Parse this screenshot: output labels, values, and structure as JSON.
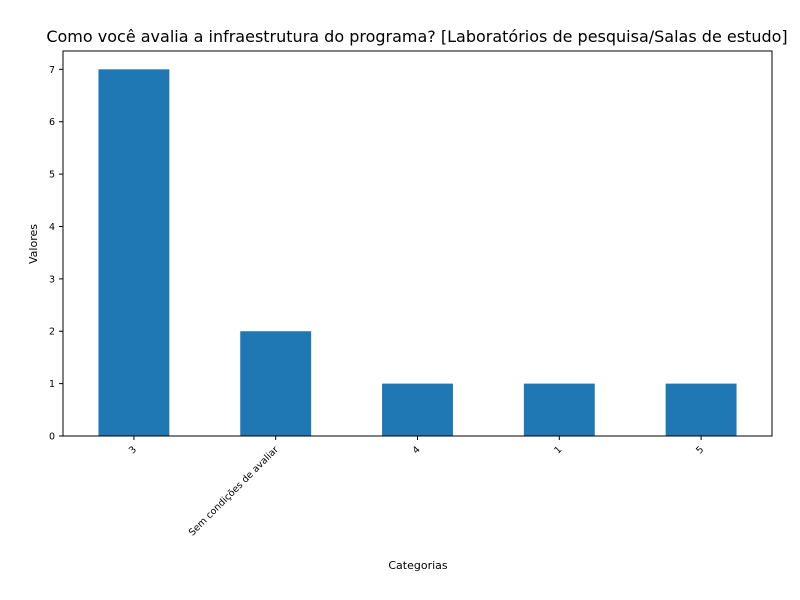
{
  "chart_data": {
    "type": "bar",
    "title": "Como você avalia a infraestrutura do programa? [Laboratórios de pesquisa/Salas de estudo]",
    "xlabel": "Categorias",
    "ylabel": "Valores",
    "categories": [
      "3",
      "Sem condições de avaliar",
      "4",
      "1",
      "5"
    ],
    "values": [
      7,
      2,
      1,
      1,
      1
    ],
    "ylim": [
      0,
      7.35
    ],
    "yticks": [
      0,
      1,
      2,
      3,
      4,
      5,
      6,
      7
    ],
    "grid": false,
    "legend": "none",
    "bar_color": "#1f77b4"
  }
}
